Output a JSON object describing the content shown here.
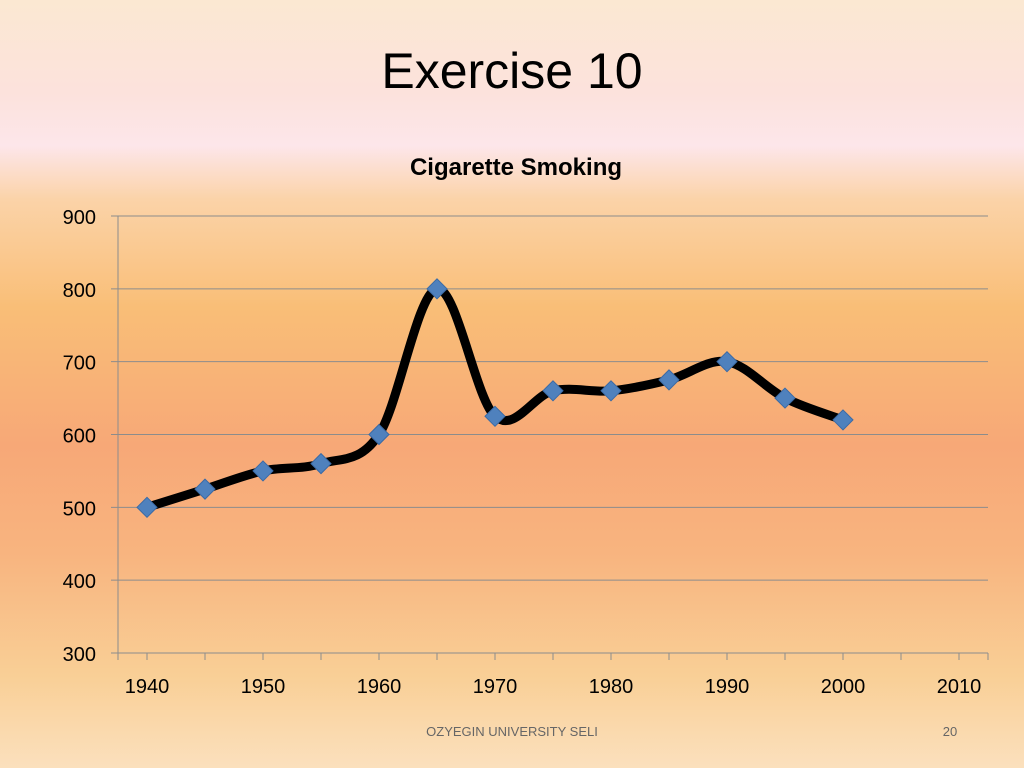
{
  "slide": {
    "title": "Exercise 10",
    "footer": "OZYEGIN UNIVERSITY SELI",
    "page_number": "20"
  },
  "chart_data": {
    "type": "line",
    "title": "Cigarette Smoking",
    "xlabel": "",
    "ylabel": "",
    "xlim": [
      1937.5,
      2012.5
    ],
    "ylim": [
      300,
      900
    ],
    "x_ticks": [
      "1940",
      "1950",
      "1960",
      "1970",
      "1980",
      "1990",
      "2000",
      "2010"
    ],
    "y_ticks": [
      "300",
      "400",
      "500",
      "600",
      "700",
      "800",
      "900"
    ],
    "grid": true,
    "legend": "none",
    "smooth": true,
    "colors": {
      "line": "#000000",
      "marker": "#4f81bd",
      "grid": "#8c8c8c"
    },
    "series": [
      {
        "x": [
          1940,
          1945,
          1950,
          1955,
          1960,
          1965,
          1970,
          1975,
          1980,
          1985,
          1990,
          1995,
          2000
        ],
        "y": [
          500,
          525,
          550,
          560,
          600,
          800,
          625,
          660,
          660,
          675,
          700,
          650,
          620
        ]
      }
    ]
  }
}
